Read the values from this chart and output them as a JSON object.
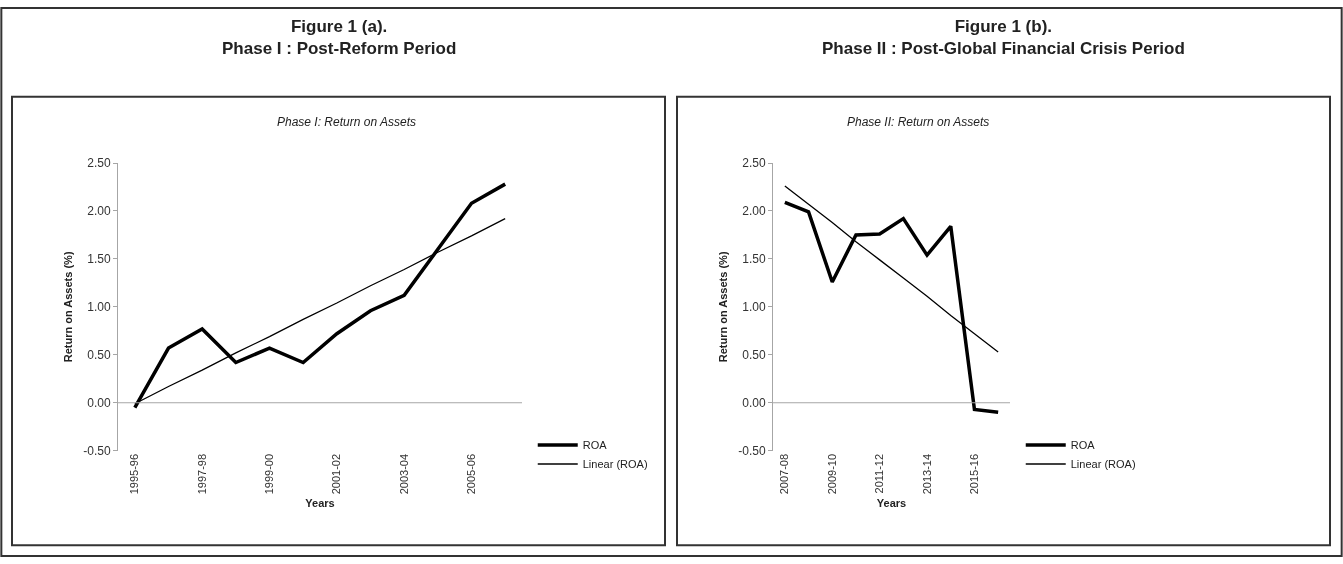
{
  "chart_data": [
    {
      "type": "line",
      "title": "Figure 1 (a).\nPhase I : Post-Reform Period",
      "subtitle": "Phase I: Return on Assets",
      "xlabel": "Years",
      "ylabel": "Return on Assets (%)",
      "categories": [
        "1995-96",
        null,
        "1997-98",
        null,
        "1999-00",
        null,
        "2001-02",
        null,
        "2003-04",
        null,
        "2005-06",
        null
      ],
      "series": [
        {
          "name": "ROA",
          "color": "#000000",
          "values": [
            -0.05,
            0.57,
            0.77,
            0.42,
            0.57,
            0.42,
            0.72,
            0.96,
            1.12,
            1.6,
            2.08,
            2.28
          ]
        },
        {
          "name": "Linear (ROA)",
          "color": "#000000",
          "values": [
            -0.01,
            0.17,
            0.34,
            0.52,
            0.69,
            0.87,
            1.04,
            1.22,
            1.39,
            1.57,
            1.74,
            1.92
          ]
        }
      ],
      "ylim": [
        -0.5,
        2.5
      ],
      "yticks": [
        {
          "value": -0.5,
          "label": "-0.50"
        },
        {
          "value": 0,
          "label": "0.00"
        },
        {
          "value": 0.5,
          "label": "0.50"
        },
        {
          "value": 1,
          "label": "1.00"
        },
        {
          "value": 1.5,
          "label": "1.50"
        },
        {
          "value": 2,
          "label": "2.00"
        },
        {
          "value": 2.5,
          "label": "2.50"
        }
      ],
      "ref_lines": [
        {
          "axis": "y",
          "value": 0,
          "color": "#a6a6a6"
        }
      ],
      "grid": false,
      "legend": "right",
      "marker": "none",
      "line_style": "solid"
    },
    {
      "type": "line",
      "title": "Figure 1 (b).\nPhase II : Post-Global Financial Crisis Period",
      "subtitle": "Phase II: Return on Assets",
      "xlabel": "Years",
      "ylabel": "Return on Assets (%)",
      "categories": [
        "2007-08",
        null,
        "2009-10",
        null,
        "2011-12",
        null,
        "2013-14",
        null,
        "2015-16",
        null
      ],
      "series": [
        {
          "name": "ROA",
          "color": "#000000",
          "values": [
            2.09,
            1.99,
            1.26,
            1.75,
            1.76,
            1.92,
            1.54,
            1.84,
            -0.07,
            -0.1
          ]
        },
        {
          "name": "Linear (ROA)",
          "color": "#000000",
          "values": [
            2.26,
            2.07,
            1.88,
            1.68,
            1.49,
            1.3,
            1.11,
            0.91,
            0.72,
            0.53
          ]
        }
      ],
      "ylim": [
        -0.5,
        2.5
      ],
      "yticks": [
        {
          "value": -0.5,
          "label": "-0.50"
        },
        {
          "value": 0,
          "label": "0.00"
        },
        {
          "value": 0.5,
          "label": "0.50"
        },
        {
          "value": 1,
          "label": "1.00"
        },
        {
          "value": 1.5,
          "label": "1.50"
        },
        {
          "value": 2,
          "label": "2.00"
        },
        {
          "value": 2.5,
          "label": "2.50"
        }
      ],
      "ref_lines": [
        {
          "axis": "y",
          "value": 0,
          "color": "#a6a6a6"
        }
      ],
      "grid": false,
      "legend": "right",
      "marker": "none",
      "line_style": "solid"
    }
  ]
}
